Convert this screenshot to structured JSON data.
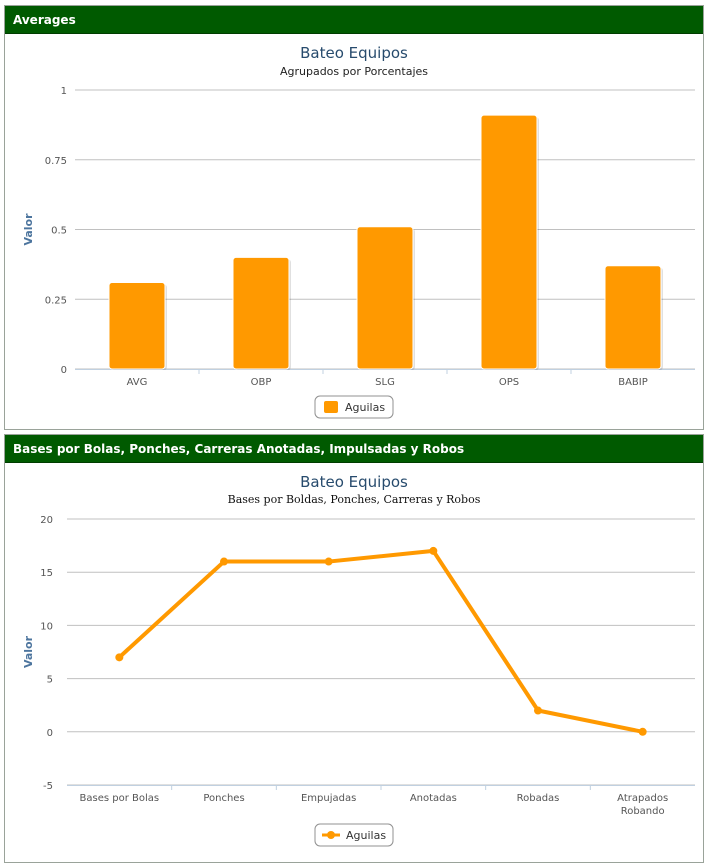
{
  "panels": [
    {
      "header": "Averages"
    },
    {
      "header": "Bases por Bolas, Ponches, Carreras Anotadas, Impulsadas y Robos"
    }
  ],
  "chart_data": [
    {
      "type": "bar",
      "title": "Bateo Equipos",
      "subtitle": "Agrupados por Porcentajes",
      "ylabel": "Valor",
      "xlabel": "",
      "categories": [
        "AVG",
        "OBP",
        "SLG",
        "OPS",
        "BABIP"
      ],
      "series": [
        {
          "name": "Aguilas",
          "values": [
            0.31,
            0.4,
            0.51,
            0.91,
            0.37
          ],
          "color": "#ff9900"
        }
      ],
      "ylim": [
        0,
        1
      ],
      "yticks": [
        0,
        0.25,
        0.5,
        0.75,
        1
      ],
      "ytick_labels": [
        "0",
        "0.25",
        "0.5",
        "0.75",
        "1"
      ],
      "grid": true,
      "legend": "bottom-center"
    },
    {
      "type": "line",
      "title": "Bateo Equipos",
      "subtitle": "Bases por Boldas, Ponches, Carreras y Robos",
      "ylabel": "Valor",
      "xlabel": "",
      "categories": [
        "Bases por Bolas",
        "Ponches",
        "Empujadas",
        "Anotadas",
        "Robadas",
        "Atrapados Robando"
      ],
      "series": [
        {
          "name": "Aguilas",
          "values": [
            7,
            16,
            16,
            17,
            2,
            0
          ],
          "color": "#ff9900"
        }
      ],
      "ylim": [
        -5,
        20
      ],
      "yticks": [
        -5,
        0,
        5,
        10,
        15,
        20
      ],
      "ytick_labels": [
        "-5",
        "0",
        "5",
        "10",
        "15",
        "20"
      ],
      "grid": true,
      "legend": "bottom-center"
    }
  ]
}
